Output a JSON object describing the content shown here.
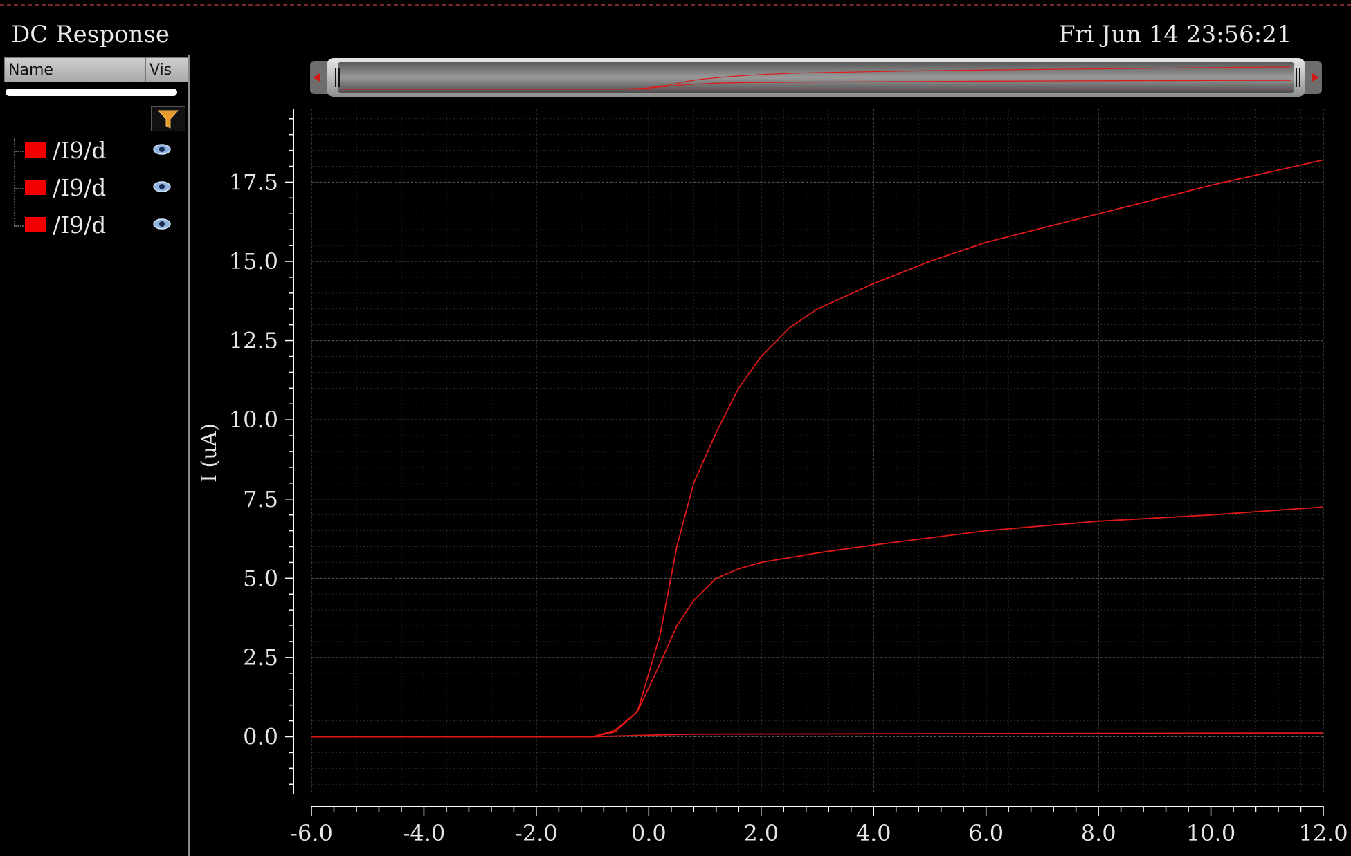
{
  "header": {
    "title": "DC Response",
    "datetime": "Fri Jun 14 23:56:21"
  },
  "side_panel": {
    "columns": {
      "name": "Name",
      "vis": "Vis"
    },
    "signals": [
      {
        "name": "/I9/d",
        "color": "#f20000",
        "visible_icon": "eye-icon"
      },
      {
        "name": "/I9/d",
        "color": "#f20000",
        "visible_icon": "eye-icon"
      },
      {
        "name": "/I9/d",
        "color": "#f20000",
        "visible_icon": "eye-icon"
      }
    ],
    "filter_icon": "funnel-icon"
  },
  "chart_data": {
    "type": "line",
    "ylabel": "I (uA)",
    "xlabel": "",
    "xlim": [
      -6.0,
      12.0
    ],
    "ylim": [
      -1.8,
      19.8
    ],
    "x_ticks": [
      "-6.0",
      "-4.0",
      "-2.0",
      "0.0",
      "2.0",
      "4.0",
      "6.0",
      "8.0",
      "10.0",
      "12.0"
    ],
    "y_ticks": [
      "0.0",
      "2.5",
      "5.0",
      "7.5",
      "10.0",
      "12.5",
      "15.0",
      "17.5"
    ],
    "grid": true,
    "line_color": "#e01818",
    "series": [
      {
        "x": [
          -6,
          -1,
          -0.6,
          -0.2,
          0.2,
          0.5,
          0.8,
          1.2,
          1.6,
          2.0,
          2.5,
          3.0,
          4.0,
          5.0,
          6.0,
          8.0,
          10.0,
          12.0
        ],
        "y": [
          0,
          0,
          0.2,
          0.8,
          3.2,
          6.0,
          8.0,
          9.6,
          11.0,
          12.0,
          12.9,
          13.5,
          14.3,
          15.0,
          15.6,
          16.5,
          17.4,
          18.2
        ]
      },
      {
        "x": [
          -6,
          -1,
          -0.6,
          -0.2,
          0.2,
          0.5,
          0.8,
          1.2,
          1.6,
          2.0,
          3.0,
          4.0,
          6.0,
          8.0,
          10.0,
          12.0
        ],
        "y": [
          0,
          0,
          0.15,
          0.8,
          2.3,
          3.5,
          4.3,
          5.0,
          5.3,
          5.5,
          5.8,
          6.05,
          6.5,
          6.8,
          7.0,
          7.25
        ]
      },
      {
        "x": [
          -6,
          -1,
          0,
          0.8,
          12.0
        ],
        "y": [
          0,
          0,
          0.05,
          0.08,
          0.12
        ]
      }
    ]
  }
}
